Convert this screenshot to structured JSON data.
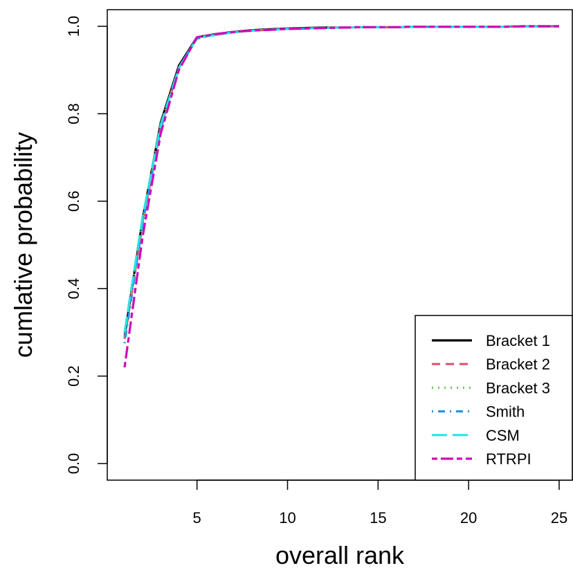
{
  "chart_data": {
    "type": "line",
    "title": "",
    "xlabel": "overall rank",
    "ylabel": "cumlative probability",
    "xlim": [
      1,
      25
    ],
    "ylim": [
      0.0,
      1.0
    ],
    "xticks": [
      "5",
      "10",
      "15",
      "20",
      "25"
    ],
    "yticks": [
      "0.0",
      "0.2",
      "0.4",
      "0.6",
      "0.8",
      "1.0"
    ],
    "legend_position": "bottom-right",
    "x": [
      1,
      2,
      3,
      4,
      5,
      6,
      7,
      8,
      9,
      10,
      11,
      12,
      13,
      14,
      15,
      16,
      17,
      18,
      19,
      20,
      21,
      22,
      23,
      24,
      25
    ],
    "series": [
      {
        "name": "Bracket 1",
        "color": "#000000",
        "dash": "solid",
        "values": [
          0.29,
          0.56,
          0.78,
          0.91,
          0.975,
          0.982,
          0.987,
          0.991,
          0.993,
          0.995,
          0.996,
          0.997,
          0.997,
          0.998,
          0.998,
          0.998,
          0.999,
          0.999,
          0.999,
          0.999,
          0.999,
          0.999,
          1.0,
          1.0,
          1.0
        ]
      },
      {
        "name": "Bracket 2",
        "color": "#DF536B",
        "dash": "dashed",
        "values": [
          0.285,
          0.55,
          0.77,
          0.905,
          0.974,
          0.981,
          0.986,
          0.99,
          0.992,
          0.994,
          0.995,
          0.996,
          0.997,
          0.998,
          0.998,
          0.998,
          0.999,
          0.999,
          0.999,
          0.999,
          0.999,
          0.999,
          1.0,
          1.0,
          1.0
        ]
      },
      {
        "name": "Bracket 3",
        "color": "#61D04F",
        "dash": "dotted",
        "values": [
          0.29,
          0.555,
          0.775,
          0.905,
          0.974,
          0.981,
          0.986,
          0.99,
          0.992,
          0.994,
          0.995,
          0.996,
          0.997,
          0.998,
          0.998,
          0.998,
          0.999,
          0.999,
          0.999,
          0.999,
          0.999,
          0.999,
          1.0,
          1.0,
          1.0
        ]
      },
      {
        "name": "Smith",
        "color": "#2297E6",
        "dash": "dotdash",
        "values": [
          0.275,
          0.55,
          0.765,
          0.905,
          0.972,
          0.98,
          0.986,
          0.99,
          0.992,
          0.994,
          0.995,
          0.996,
          0.997,
          0.998,
          0.998,
          0.998,
          0.999,
          0.999,
          0.999,
          0.999,
          0.999,
          0.999,
          1.0,
          1.0,
          1.0
        ]
      },
      {
        "name": "CSM",
        "color": "#28E2E5",
        "dash": "longdash",
        "values": [
          0.3,
          0.565,
          0.775,
          0.905,
          0.973,
          0.98,
          0.986,
          0.99,
          0.992,
          0.994,
          0.995,
          0.996,
          0.997,
          0.998,
          0.998,
          0.998,
          0.999,
          0.999,
          0.999,
          0.999,
          0.999,
          0.999,
          1.0,
          1.0,
          1.0
        ]
      },
      {
        "name": "RTRPI",
        "color": "#CD0BBC",
        "dash": "twodash",
        "values": [
          0.22,
          0.52,
          0.755,
          0.9,
          0.975,
          0.982,
          0.987,
          0.99,
          0.992,
          0.994,
          0.995,
          0.996,
          0.997,
          0.998,
          0.998,
          0.998,
          0.999,
          0.999,
          0.999,
          0.999,
          0.999,
          0.999,
          1.0,
          1.0,
          1.0
        ]
      }
    ]
  }
}
